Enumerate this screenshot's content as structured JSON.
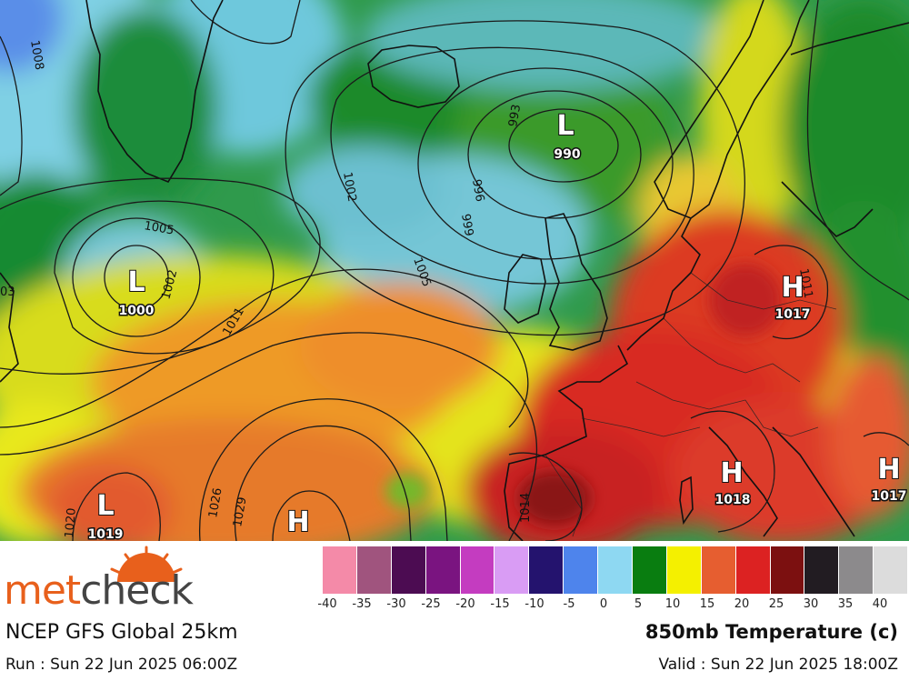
{
  "map": {
    "pressure_systems": [
      {
        "type": "L",
        "value": "990"
      },
      {
        "type": "L",
        "value": "1000"
      },
      {
        "type": "L",
        "value": "1019"
      },
      {
        "type": "H",
        "value": "1017"
      },
      {
        "type": "H",
        "value": "1018"
      },
      {
        "type": "H",
        "value": "1017"
      },
      {
        "type": "H",
        "value": ""
      }
    ],
    "isobar_labels": [
      "1008",
      "1005",
      "1002",
      "1011",
      "993",
      "996",
      "999",
      "1005",
      "1002",
      "1020",
      "1026",
      "1029",
      "1014",
      "03",
      "1011"
    ]
  },
  "legend": {
    "labels": [
      "-40",
      "-35",
      "-30",
      "-25",
      "-20",
      "-15",
      "-10",
      "-5",
      "0",
      "5",
      "10",
      "15",
      "20",
      "25",
      "30",
      "35",
      "40"
    ],
    "colors": [
      "#f48aa8",
      "#a0547e",
      "#4c0c52",
      "#7a1480",
      "#c43cc0",
      "#d99cf4",
      "#24136e",
      "#4e84ec",
      "#8ed8f2",
      "#097d10",
      "#f4f000",
      "#e65e30",
      "#dc2222",
      "#7c1010",
      "#221c22",
      "#8c8a8c",
      "#dcdcdc"
    ]
  },
  "brand": {
    "met": "met",
    "check": "check"
  },
  "model_label": "NCEP GFS Global 25km",
  "run_label": "Run : Sun 22 Jun 2025 06:00Z",
  "product_label": "850mb Temperature (c)",
  "valid_label": "Valid : Sun 22 Jun 2025 18:00Z"
}
